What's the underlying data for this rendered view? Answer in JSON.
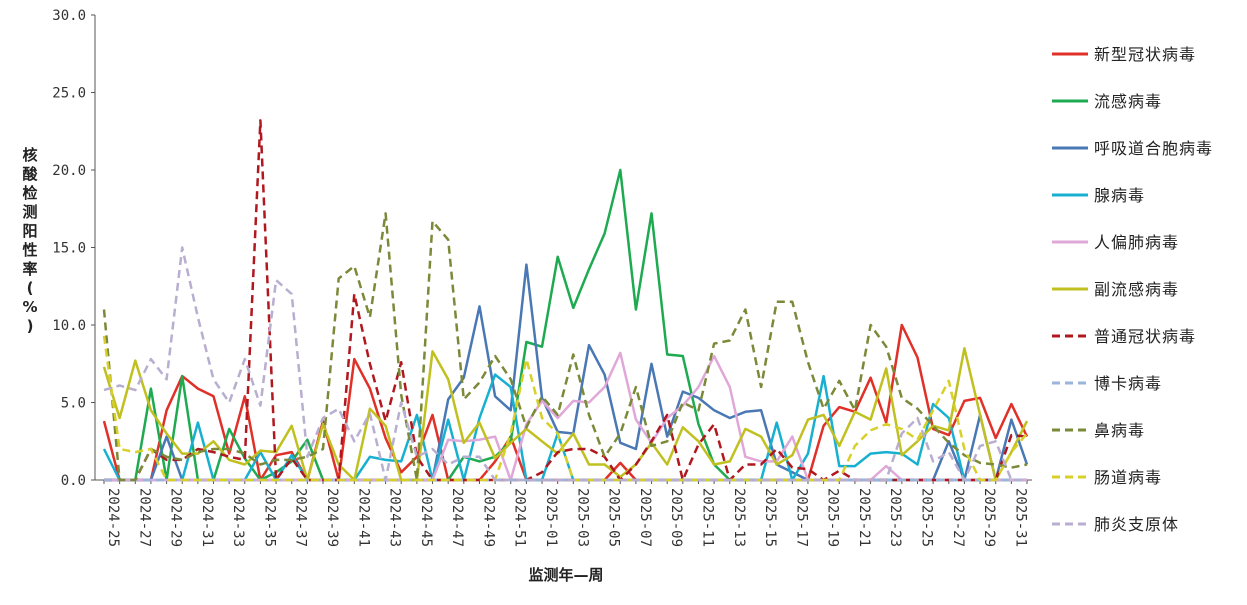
{
  "chart_data": {
    "type": "line",
    "xlabel": "监测年—周",
    "ylabel": "核酸检测阳性率(%)",
    "ylim": [
      0,
      30
    ],
    "yticks": [
      "0.0",
      "5.0",
      "10.0",
      "15.0",
      "20.0",
      "25.0",
      "30.0"
    ],
    "grid": false,
    "legend_position": "right",
    "x": [
      "2024-25",
      "2024-26",
      "2024-27",
      "2024-28",
      "2024-29",
      "2024-30",
      "2024-31",
      "2024-32",
      "2024-33",
      "2024-34",
      "2024-35",
      "2024-36",
      "2024-37",
      "2024-38",
      "2024-39",
      "2024-40",
      "2024-41",
      "2024-42",
      "2024-43",
      "2024-44",
      "2024-45",
      "2024-46",
      "2024-47",
      "2024-48",
      "2024-49",
      "2024-50",
      "2024-51",
      "2024-52",
      "2025-01",
      "2025-02",
      "2025-03",
      "2025-04",
      "2025-05",
      "2025-06",
      "2025-07",
      "2025-08",
      "2025-09",
      "2025-10",
      "2025-11",
      "2025-12",
      "2025-13",
      "2025-14",
      "2025-15",
      "2025-16",
      "2025-17",
      "2025-18",
      "2025-19",
      "2025-20",
      "2025-21",
      "2025-22",
      "2025-23",
      "2025-24",
      "2025-25",
      "2025-26",
      "2025-27",
      "2025-28",
      "2025-29",
      "2025-30",
      "2025-31",
      "2025-32"
    ],
    "xtick_labels": [
      "2024-25",
      "2024-27",
      "2024-29",
      "2024-31",
      "2024-33",
      "2024-35",
      "2024-37",
      "2024-39",
      "2024-41",
      "2024-43",
      "2024-45",
      "2024-47",
      "2024-49",
      "2024-51",
      "2025-01",
      "2025-03",
      "2025-05",
      "2025-07",
      "2025-09",
      "2025-11",
      "2025-13",
      "2025-15",
      "2025-17",
      "2025-19",
      "2025-21",
      "2025-23",
      "2025-25",
      "2025-27",
      "2025-29",
      "2025-31"
    ],
    "series": [
      {
        "name": "新型冠状病毒",
        "color": "#e03028",
        "dash": "solid",
        "values": [
          3.8,
          0,
          0,
          0,
          4.5,
          6.7,
          5.9,
          5.4,
          1.7,
          5.4,
          0,
          1.6,
          1.8,
          0,
          3.8,
          0,
          7.8,
          5.9,
          2.7,
          0.5,
          1.5,
          4.2,
          0,
          0,
          0,
          1.2,
          2.8,
          0,
          0,
          0,
          0,
          0,
          0,
          1.1,
          0,
          0,
          0,
          0,
          0,
          0,
          0,
          0,
          0,
          0,
          0,
          0,
          3.5,
          4.7,
          4.4,
          6.6,
          3.7,
          10.0,
          7.9,
          3.3,
          2.9,
          5.1,
          5.3,
          2.7,
          4.9,
          2.8
        ]
      },
      {
        "name": "流感病毒",
        "color": "#1eaa50",
        "dash": "solid",
        "values": [
          0,
          0,
          0,
          5.9,
          0,
          6.7,
          0,
          0,
          3.3,
          1.4,
          0,
          0.5,
          1.2,
          2.6,
          0,
          0,
          0,
          0,
          0,
          0,
          0,
          0,
          0,
          1.5,
          1.2,
          1.5,
          2.5,
          8.9,
          8.6,
          14.4,
          11.1,
          13.6,
          15.9,
          20.0,
          11.0,
          17.2,
          8.1,
          8.0,
          3.6,
          1.0,
          0,
          0,
          0,
          0,
          0,
          0,
          0,
          0,
          0,
          0,
          0,
          0,
          0,
          0,
          0,
          0,
          0,
          0,
          0,
          0
        ]
      },
      {
        "name": "呼吸道合胞病毒",
        "color": "#4a78b4",
        "dash": "solid",
        "values": [
          0,
          0,
          0,
          0,
          2.8,
          0,
          0,
          0,
          0,
          0,
          0,
          0,
          0,
          0,
          0,
          0,
          0,
          0,
          0,
          0,
          0,
          0,
          5.2,
          6.6,
          11.2,
          5.4,
          4.5,
          13.9,
          5.3,
          3.1,
          3.0,
          8.7,
          6.8,
          2.4,
          2.0,
          7.5,
          2.8,
          5.7,
          5.3,
          4.5,
          4.0,
          4.4,
          4.5,
          1.0,
          0.5,
          0,
          0,
          0,
          0,
          0,
          0,
          0,
          0,
          0,
          2.5,
          0,
          4.2,
          0,
          3.9,
          1.0
        ]
      },
      {
        "name": "腺病毒",
        "color": "#18b0d0",
        "dash": "solid",
        "values": [
          2.0,
          0,
          0,
          0,
          0,
          0,
          3.7,
          0,
          0,
          0,
          1.8,
          0,
          1.6,
          0,
          0,
          0,
          0,
          1.5,
          1.3,
          1.2,
          4.2,
          0,
          3.9,
          0,
          4.0,
          6.8,
          6.0,
          0,
          0,
          3.0,
          0,
          0,
          0,
          0,
          0,
          0,
          0,
          0,
          0,
          0,
          0,
          0,
          0,
          3.7,
          0,
          1.7,
          6.7,
          0.9,
          0.9,
          1.7,
          1.8,
          1.7,
          1.0,
          4.9,
          4.0,
          0,
          0,
          0,
          0,
          0
        ]
      },
      {
        "name": "人偏肺病毒",
        "color": "#e0a8d8",
        "dash": "solid",
        "values": [
          0,
          0,
          0,
          0,
          0,
          0,
          0,
          0,
          0,
          0,
          0,
          0,
          0,
          0,
          0,
          0,
          0,
          0,
          0,
          0,
          0,
          0,
          2.6,
          2.5,
          2.6,
          2.8,
          0,
          3.6,
          5.1,
          4.0,
          5.1,
          5.0,
          6.0,
          8.2,
          3.9,
          2.4,
          4.0,
          4.8,
          6.0,
          8.0,
          6.0,
          1.5,
          1.2,
          1.2,
          2.8,
          0,
          0,
          0,
          0,
          0,
          0.9,
          0,
          0,
          0,
          0,
          0,
          0,
          0,
          0,
          0
        ]
      },
      {
        "name": "副流感病毒",
        "color": "#c0c020",
        "dash": "solid",
        "values": [
          7.3,
          4.0,
          7.7,
          4.5,
          3.0,
          1.7,
          1.7,
          2.5,
          1.3,
          1.0,
          1.9,
          1.8,
          3.5,
          0,
          3.6,
          1.0,
          0,
          4.6,
          3.5,
          0,
          0,
          8.3,
          6.5,
          2.4,
          3.7,
          1.4,
          2.4,
          3.3,
          2.5,
          1.7,
          3.0,
          1.0,
          1.0,
          0.2,
          1.0,
          2.4,
          1.0,
          3.4,
          2.5,
          1.0,
          1.2,
          3.3,
          2.8,
          1.0,
          1.6,
          3.9,
          4.2,
          2.2,
          4.4,
          3.9,
          7.2,
          1.6,
          2.5,
          3.5,
          3.2,
          8.5,
          4.2,
          0,
          1.8,
          3.8
        ]
      },
      {
        "name": "普通冠状病毒",
        "color": "#b01820",
        "dash": "dash",
        "values": [
          0,
          0,
          0,
          2.0,
          1.3,
          1.3,
          2.0,
          1.8,
          1.5,
          1.3,
          23.2,
          0,
          1.4,
          0,
          0,
          0,
          12.0,
          7.5,
          3.8,
          7.6,
          1.5,
          0,
          0,
          0,
          0,
          0,
          0,
          0,
          0.5,
          1.8,
          2.0,
          2.0,
          1.5,
          0,
          1.0,
          2.5,
          4.2,
          0,
          2.3,
          3.6,
          0,
          1.0,
          1.0,
          2.0,
          0.8,
          0.7,
          0,
          0.6,
          0,
          0,
          0,
          0,
          0,
          0,
          0,
          0,
          0,
          0,
          2.9,
          2.8
        ]
      },
      {
        "name": "博卡病毒",
        "color": "#9ab4dc",
        "dash": "dash",
        "values": [
          0,
          0,
          0,
          0,
          0,
          0,
          0,
          0,
          0,
          0,
          0,
          0,
          0,
          0,
          0,
          0,
          0,
          0,
          0,
          0,
          0,
          0,
          0,
          0,
          0,
          0,
          0,
          0,
          0,
          0,
          0,
          0,
          0,
          0,
          0,
          0,
          0,
          0,
          0,
          0,
          0,
          0,
          0,
          0,
          0,
          0,
          0,
          0,
          0,
          0,
          0,
          0,
          0,
          0,
          0,
          0,
          0,
          0,
          0,
          0
        ]
      },
      {
        "name": "鼻病毒",
        "color": "#7a8a38",
        "dash": "dash",
        "values": [
          11.0,
          0,
          0,
          2.0,
          1.5,
          1.3,
          1.8,
          2.0,
          2.0,
          1.7,
          1.0,
          1.3,
          1.3,
          1.5,
          2.0,
          13.0,
          13.8,
          10.5,
          17.2,
          5.5,
          0,
          16.7,
          15.5,
          5.2,
          6.3,
          8.0,
          6.5,
          3.4,
          5.4,
          4.2,
          8.1,
          4.2,
          1.5,
          3.0,
          6.0,
          2.2,
          2.5,
          5.0,
          4.5,
          8.8,
          9.0,
          11.0,
          6.0,
          11.5,
          11.5,
          7.6,
          4.6,
          6.4,
          4.5,
          10.0,
          8.6,
          5.3,
          4.6,
          3.5,
          2.4,
          1.6,
          1.1,
          1.0,
          0.8,
          1.0
        ]
      },
      {
        "name": "肠道病毒",
        "color": "#d8d028",
        "dash": "dash",
        "values": [
          9.3,
          2.0,
          1.8,
          2.0,
          0,
          0,
          0,
          0,
          0,
          0,
          0,
          0,
          0,
          0,
          0,
          0,
          0,
          0,
          0,
          0,
          0,
          0,
          0,
          0,
          0,
          0,
          3.0,
          7.8,
          4.0,
          3.0,
          0,
          0,
          0,
          0,
          0,
          0,
          0,
          0,
          0,
          0,
          0,
          0,
          0,
          0,
          0,
          0,
          0,
          0,
          2.2,
          3.2,
          3.6,
          3.3,
          2.6,
          4.5,
          6.4,
          2.0,
          0,
          0,
          1.8,
          3.0
        ]
      },
      {
        "name": "肺炎支原体",
        "color": "#b8aed0",
        "dash": "dash",
        "values": [
          5.8,
          6.1,
          5.8,
          7.8,
          6.5,
          15.0,
          10.5,
          6.5,
          5.0,
          7.8,
          4.8,
          12.9,
          12.0,
          1.5,
          4.0,
          4.6,
          2.5,
          4.3,
          0,
          5.0,
          1.5,
          2.0,
          1.0,
          1.5,
          1.5,
          0,
          0,
          0,
          0,
          0,
          0,
          0,
          0,
          0,
          0,
          0,
          0,
          0,
          0,
          0,
          0,
          0,
          0,
          0,
          0,
          0,
          0,
          0,
          0,
          0,
          0,
          3.0,
          4.0,
          1.2,
          1.8,
          0,
          2.2,
          2.5,
          0,
          0
        ]
      }
    ]
  }
}
